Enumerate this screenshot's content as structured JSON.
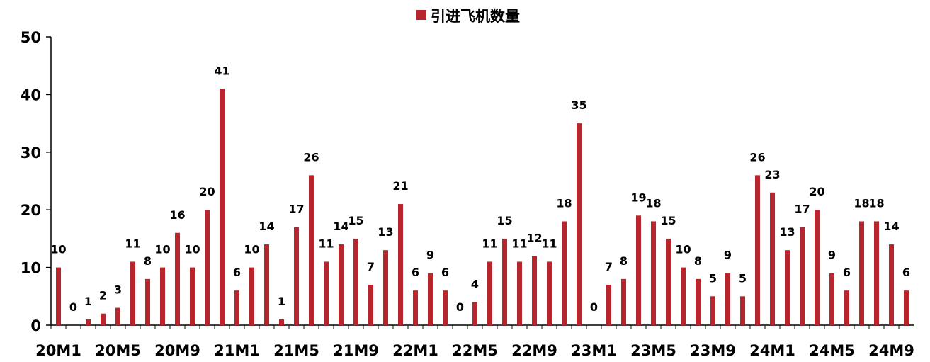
{
  "chart_data": {
    "type": "bar",
    "legend": {
      "label": "引进飞机数量",
      "position": "top-center"
    },
    "colors": {
      "bar": "#B8252C",
      "axis": "#000000"
    },
    "ylim": [
      0,
      50
    ],
    "yticks": [
      0,
      10,
      20,
      30,
      40,
      50
    ],
    "grid": false,
    "xtick_labels": [
      "20M1",
      "20M5",
      "20M9",
      "21M1",
      "21M5",
      "21M9",
      "22M1",
      "22M5",
      "22M9",
      "23M1",
      "23M5",
      "23M9",
      "24M1",
      "24M5",
      "24M9"
    ],
    "categories": [
      "20M1",
      "20M2",
      "20M3",
      "20M4",
      "20M5",
      "20M6",
      "20M7",
      "20M8",
      "20M9",
      "20M10",
      "20M11",
      "20M12",
      "21M1",
      "21M2",
      "21M3",
      "21M4",
      "21M5",
      "21M6",
      "21M7",
      "21M8",
      "21M9",
      "21M10",
      "21M11",
      "21M12",
      "22M1",
      "22M2",
      "22M3",
      "22M4",
      "22M5",
      "22M6",
      "22M7",
      "22M8",
      "22M9",
      "22M10",
      "22M11",
      "22M12",
      "23M1",
      "23M2",
      "23M3",
      "23M4",
      "23M5",
      "23M6",
      "23M7",
      "23M8",
      "23M9",
      "23M10",
      "23M11",
      "23M12",
      "24M1",
      "24M2",
      "24M3",
      "24M4",
      "24M5",
      "24M6",
      "24M7",
      "24M8",
      "24M9",
      "24M10"
    ],
    "series": [
      {
        "name": "引进飞机数量",
        "values": [
          10,
          0,
          1,
          2,
          3,
          11,
          8,
          10,
          16,
          10,
          20,
          41,
          6,
          10,
          14,
          1,
          17,
          26,
          11,
          14,
          15,
          7,
          13,
          21,
          6,
          9,
          6,
          0,
          4,
          11,
          15,
          11,
          12,
          11,
          18,
          35,
          0,
          7,
          8,
          19,
          18,
          15,
          10,
          8,
          5,
          9,
          5,
          26,
          23,
          13,
          17,
          20,
          9,
          6,
          18,
          18,
          14,
          6
        ],
        "labels": [
          "10",
          "0",
          "1",
          "2",
          "3",
          "11",
          "8",
          "10",
          "16",
          "10",
          "20",
          "41",
          "6",
          "10",
          "14",
          "1",
          "17",
          "26",
          "11",
          "14",
          "15",
          "7",
          "13",
          "21",
          "6",
          "9",
          "6",
          "0",
          "4",
          "11",
          "15",
          "11",
          "12",
          "11",
          "18",
          "35",
          "0",
          "7",
          "8",
          "19",
          "18",
          "15",
          "10",
          "8",
          "5",
          "9",
          "5",
          "26",
          "23",
          "13",
          "17",
          "20",
          "9",
          "6",
          "18",
          "18",
          "14",
          "6"
        ]
      }
    ]
  }
}
